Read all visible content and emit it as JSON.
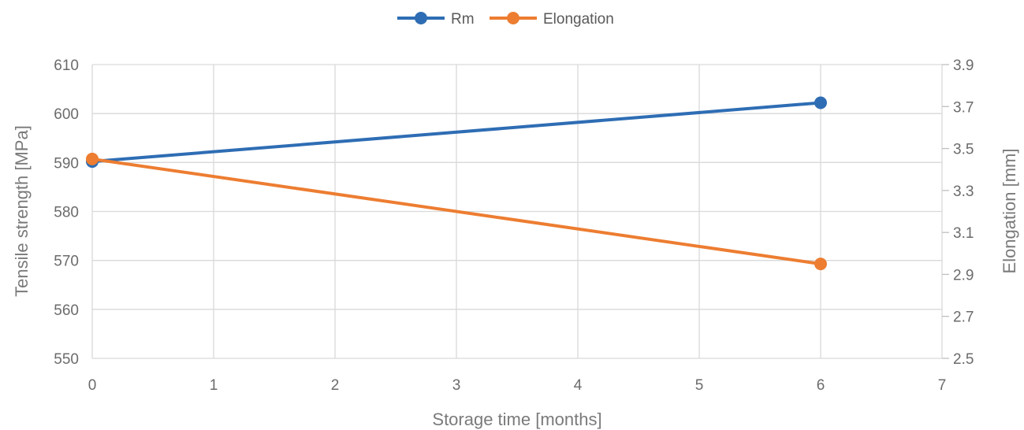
{
  "chart_data": {
    "type": "line",
    "x": [
      0,
      6
    ],
    "xlim": [
      0,
      7
    ],
    "xticks": [
      "0",
      "1",
      "2",
      "3",
      "4",
      "5",
      "6",
      "7"
    ],
    "xlabel": "Storage time [months]",
    "ylabel": "Tensile strength [MPa]",
    "ylim": [
      550,
      610
    ],
    "yticks": [
      "550",
      "560",
      "570",
      "580",
      "590",
      "600",
      "610"
    ],
    "y2label": "Elongation [mm]",
    "y2lim": [
      2.5,
      3.9
    ],
    "y2ticks": [
      "2.5",
      "2.7",
      "2.9",
      "3.1",
      "3.3",
      "3.5",
      "3.7",
      "3.9"
    ],
    "grid": true,
    "legend_position": "top",
    "series": [
      {
        "name": "Rm",
        "axis": "left",
        "values": [
          590.2,
          602.2
        ],
        "color": "#2e6db4"
      },
      {
        "name": "Elongation",
        "axis": "right",
        "values": [
          3.45,
          2.95
        ],
        "color": "#ed7d31"
      }
    ]
  }
}
